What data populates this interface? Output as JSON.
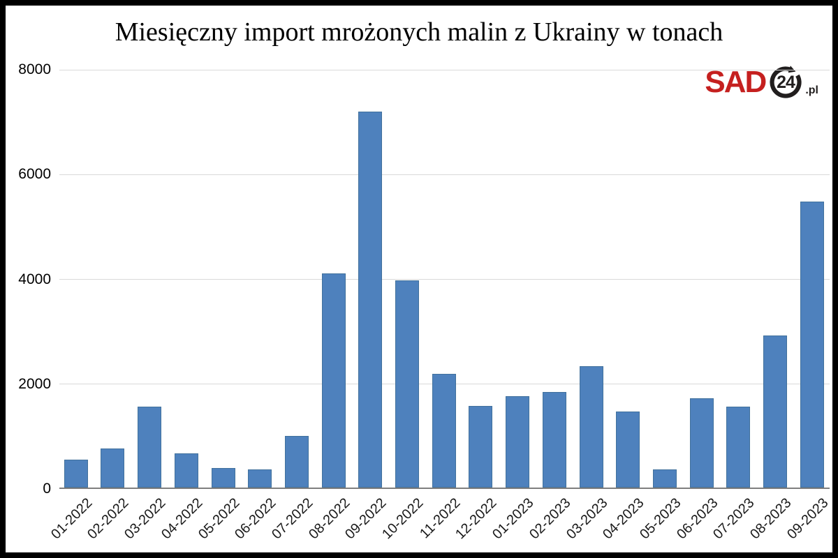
{
  "title": "Miesięczny import mrożonych malin z Ukrainy w tonach",
  "logo": {
    "sad": "SAD",
    "number": "24",
    "suffix": ".pl",
    "red": "#c5201f",
    "black": "#211e1e"
  },
  "chart_data": {
    "type": "bar",
    "title": "Miesięczny import mrożonych malin z Ukrainy w tonach",
    "categories": [
      "01-2022",
      "02-2022",
      "03-2022",
      "04-2022",
      "05-2022",
      "06-2022",
      "07-2022",
      "08-2022",
      "09-2022",
      "10-2022",
      "11-2022",
      "12-2022",
      "01-2023",
      "02-2023",
      "03-2023",
      "04-2023",
      "05-2023",
      "06-2023",
      "07-2023",
      "08-2023",
      "09-2023"
    ],
    "values": [
      530,
      750,
      1540,
      650,
      370,
      350,
      990,
      4080,
      7170,
      3960,
      2170,
      1560,
      1750,
      1820,
      2310,
      1450,
      340,
      1700,
      1540,
      2900,
      5460
    ],
    "xlabel": "",
    "ylabel": "",
    "ylim": [
      0,
      8000
    ],
    "yticks": [
      0,
      2000,
      4000,
      6000,
      8000
    ],
    "x_tick_rotation": -45,
    "grid": true,
    "legend": false,
    "bar_color": "#4e81bd",
    "bar_edge_color": "#41719c",
    "gridline_color": "#d9d9d9",
    "axis_line_color": "#7f7f7f"
  }
}
